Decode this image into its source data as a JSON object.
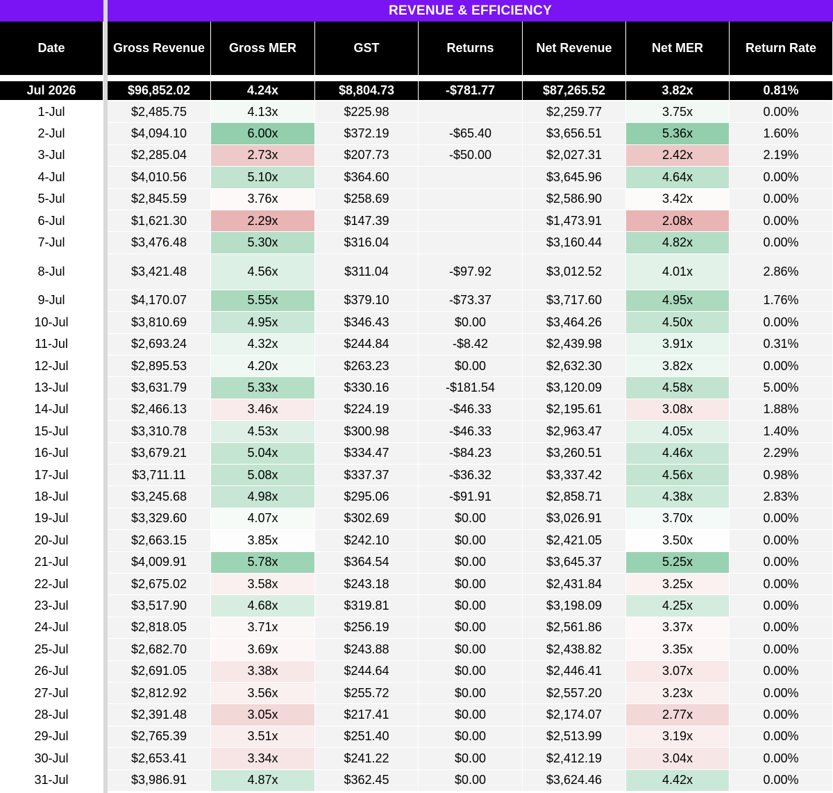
{
  "title": "REVENUE & EFFICIENCY",
  "columns": [
    "Date",
    "Gross Revenue",
    "Gross MER",
    "GST",
    "Returns",
    "Net Revenue",
    "Net MER",
    "Return Rate"
  ],
  "colors": {
    "banner": "#7b14f5",
    "header": "#000000",
    "neutral_cell": "#f3f3f3",
    "high_mer": "#93cfad",
    "low_mer": "#e8b4b4"
  },
  "total": {
    "date": "Jul 2026",
    "gross_revenue": "$96,852.02",
    "gross_mer": "4.24x",
    "gst": "$8,804.73",
    "returns": "-$781.77",
    "net_revenue": "$87,265.52",
    "net_mer": "3.82x",
    "return_rate": "0.81%"
  },
  "rows": [
    {
      "date": "1-Jul",
      "gross_revenue": "$2,485.75",
      "gross_mer": "4.13x",
      "gst": "$225.98",
      "returns": "",
      "net_revenue": "$2,259.77",
      "net_mer": "3.75x",
      "return_rate": "0.00%"
    },
    {
      "date": "2-Jul",
      "gross_revenue": "$4,094.10",
      "gross_mer": "6.00x",
      "gst": "$372.19",
      "returns": "-$65.40",
      "net_revenue": "$3,656.51",
      "net_mer": "5.36x",
      "return_rate": "1.60%"
    },
    {
      "date": "3-Jul",
      "gross_revenue": "$2,285.04",
      "gross_mer": "2.73x",
      "gst": "$207.73",
      "returns": "-$50.00",
      "net_revenue": "$2,027.31",
      "net_mer": "2.42x",
      "return_rate": "2.19%"
    },
    {
      "date": "4-Jul",
      "gross_revenue": "$4,010.56",
      "gross_mer": "5.10x",
      "gst": "$364.60",
      "returns": "",
      "net_revenue": "$3,645.96",
      "net_mer": "4.64x",
      "return_rate": "0.00%"
    },
    {
      "date": "5-Jul",
      "gross_revenue": "$2,845.59",
      "gross_mer": "3.76x",
      "gst": "$258.69",
      "returns": "",
      "net_revenue": "$2,586.90",
      "net_mer": "3.42x",
      "return_rate": "0.00%"
    },
    {
      "date": "6-Jul",
      "gross_revenue": "$1,621.30",
      "gross_mer": "2.29x",
      "gst": "$147.39",
      "returns": "",
      "net_revenue": "$1,473.91",
      "net_mer": "2.08x",
      "return_rate": "0.00%"
    },
    {
      "date": "7-Jul",
      "gross_revenue": "$3,476.48",
      "gross_mer": "5.30x",
      "gst": "$316.04",
      "returns": "",
      "net_revenue": "$3,160.44",
      "net_mer": "4.82x",
      "return_rate": "0.00%"
    },
    {
      "date": "8-Jul",
      "gross_revenue": "$3,421.48",
      "gross_mer": "4.56x",
      "gst": "$311.04",
      "returns": "-$97.92",
      "net_revenue": "$3,012.52",
      "net_mer": "4.01x",
      "return_rate": "2.86%"
    },
    {
      "date": "9-Jul",
      "gross_revenue": "$4,170.07",
      "gross_mer": "5.55x",
      "gst": "$379.10",
      "returns": "-$73.37",
      "net_revenue": "$3,717.60",
      "net_mer": "4.95x",
      "return_rate": "1.76%"
    },
    {
      "date": "10-Jul",
      "gross_revenue": "$3,810.69",
      "gross_mer": "4.95x",
      "gst": "$346.43",
      "returns": "$0.00",
      "net_revenue": "$3,464.26",
      "net_mer": "4.50x",
      "return_rate": "0.00%"
    },
    {
      "date": "11-Jul",
      "gross_revenue": "$2,693.24",
      "gross_mer": "4.32x",
      "gst": "$244.84",
      "returns": "-$8.42",
      "net_revenue": "$2,439.98",
      "net_mer": "3.91x",
      "return_rate": "0.31%"
    },
    {
      "date": "12-Jul",
      "gross_revenue": "$2,895.53",
      "gross_mer": "4.20x",
      "gst": "$263.23",
      "returns": "$0.00",
      "net_revenue": "$2,632.30",
      "net_mer": "3.82x",
      "return_rate": "0.00%"
    },
    {
      "date": "13-Jul",
      "gross_revenue": "$3,631.79",
      "gross_mer": "5.33x",
      "gst": "$330.16",
      "returns": "-$181.54",
      "net_revenue": "$3,120.09",
      "net_mer": "4.58x",
      "return_rate": "5.00%"
    },
    {
      "date": "14-Jul",
      "gross_revenue": "$2,466.13",
      "gross_mer": "3.46x",
      "gst": "$224.19",
      "returns": "-$46.33",
      "net_revenue": "$2,195.61",
      "net_mer": "3.08x",
      "return_rate": "1.88%"
    },
    {
      "date": "15-Jul",
      "gross_revenue": "$3,310.78",
      "gross_mer": "4.53x",
      "gst": "$300.98",
      "returns": "-$46.33",
      "net_revenue": "$2,963.47",
      "net_mer": "4.05x",
      "return_rate": "1.40%"
    },
    {
      "date": "16-Jul",
      "gross_revenue": "$3,679.21",
      "gross_mer": "5.04x",
      "gst": "$334.47",
      "returns": "-$84.23",
      "net_revenue": "$3,260.51",
      "net_mer": "4.46x",
      "return_rate": "2.29%"
    },
    {
      "date": "17-Jul",
      "gross_revenue": "$3,711.11",
      "gross_mer": "5.08x",
      "gst": "$337.37",
      "returns": "-$36.32",
      "net_revenue": "$3,337.42",
      "net_mer": "4.56x",
      "return_rate": "0.98%"
    },
    {
      "date": "18-Jul",
      "gross_revenue": "$3,245.68",
      "gross_mer": "4.98x",
      "gst": "$295.06",
      "returns": "-$91.91",
      "net_revenue": "$2,858.71",
      "net_mer": "4.38x",
      "return_rate": "2.83%"
    },
    {
      "date": "19-Jul",
      "gross_revenue": "$3,329.60",
      "gross_mer": "4.07x",
      "gst": "$302.69",
      "returns": "$0.00",
      "net_revenue": "$3,026.91",
      "net_mer": "3.70x",
      "return_rate": "0.00%"
    },
    {
      "date": "20-Jul",
      "gross_revenue": "$2,663.15",
      "gross_mer": "3.85x",
      "gst": "$242.10",
      "returns": "$0.00",
      "net_revenue": "$2,421.05",
      "net_mer": "3.50x",
      "return_rate": "0.00%"
    },
    {
      "date": "21-Jul",
      "gross_revenue": "$4,009.91",
      "gross_mer": "5.78x",
      "gst": "$364.54",
      "returns": "$0.00",
      "net_revenue": "$3,645.37",
      "net_mer": "5.25x",
      "return_rate": "0.00%"
    },
    {
      "date": "22-Jul",
      "gross_revenue": "$2,675.02",
      "gross_mer": "3.58x",
      "gst": "$243.18",
      "returns": "$0.00",
      "net_revenue": "$2,431.84",
      "net_mer": "3.25x",
      "return_rate": "0.00%"
    },
    {
      "date": "23-Jul",
      "gross_revenue": "$3,517.90",
      "gross_mer": "4.68x",
      "gst": "$319.81",
      "returns": "$0.00",
      "net_revenue": "$3,198.09",
      "net_mer": "4.25x",
      "return_rate": "0.00%"
    },
    {
      "date": "24-Jul",
      "gross_revenue": "$2,818.05",
      "gross_mer": "3.71x",
      "gst": "$256.19",
      "returns": "$0.00",
      "net_revenue": "$2,561.86",
      "net_mer": "3.37x",
      "return_rate": "0.00%"
    },
    {
      "date": "25-Jul",
      "gross_revenue": "$2,682.70",
      "gross_mer": "3.69x",
      "gst": "$243.88",
      "returns": "$0.00",
      "net_revenue": "$2,438.82",
      "net_mer": "3.35x",
      "return_rate": "0.00%"
    },
    {
      "date": "26-Jul",
      "gross_revenue": "$2,691.05",
      "gross_mer": "3.38x",
      "gst": "$244.64",
      "returns": "$0.00",
      "net_revenue": "$2,446.41",
      "net_mer": "3.07x",
      "return_rate": "0.00%"
    },
    {
      "date": "27-Jul",
      "gross_revenue": "$2,812.92",
      "gross_mer": "3.56x",
      "gst": "$255.72",
      "returns": "$0.00",
      "net_revenue": "$2,557.20",
      "net_mer": "3.23x",
      "return_rate": "0.00%"
    },
    {
      "date": "28-Jul",
      "gross_revenue": "$2,391.48",
      "gross_mer": "3.05x",
      "gst": "$217.41",
      "returns": "$0.00",
      "net_revenue": "$2,174.07",
      "net_mer": "2.77x",
      "return_rate": "0.00%"
    },
    {
      "date": "29-Jul",
      "gross_revenue": "$2,765.39",
      "gross_mer": "3.51x",
      "gst": "$251.40",
      "returns": "$0.00",
      "net_revenue": "$2,513.99",
      "net_mer": "3.19x",
      "return_rate": "0.00%"
    },
    {
      "date": "30-Jul",
      "gross_revenue": "$2,653.41",
      "gross_mer": "3.34x",
      "gst": "$241.22",
      "returns": "$0.00",
      "net_revenue": "$2,412.19",
      "net_mer": "3.04x",
      "return_rate": "0.00%"
    },
    {
      "date": "31-Jul",
      "gross_revenue": "$3,986.91",
      "gross_mer": "4.87x",
      "gst": "$362.45",
      "returns": "$0.00",
      "net_revenue": "$3,624.46",
      "net_mer": "4.42x",
      "return_rate": "0.00%"
    }
  ]
}
